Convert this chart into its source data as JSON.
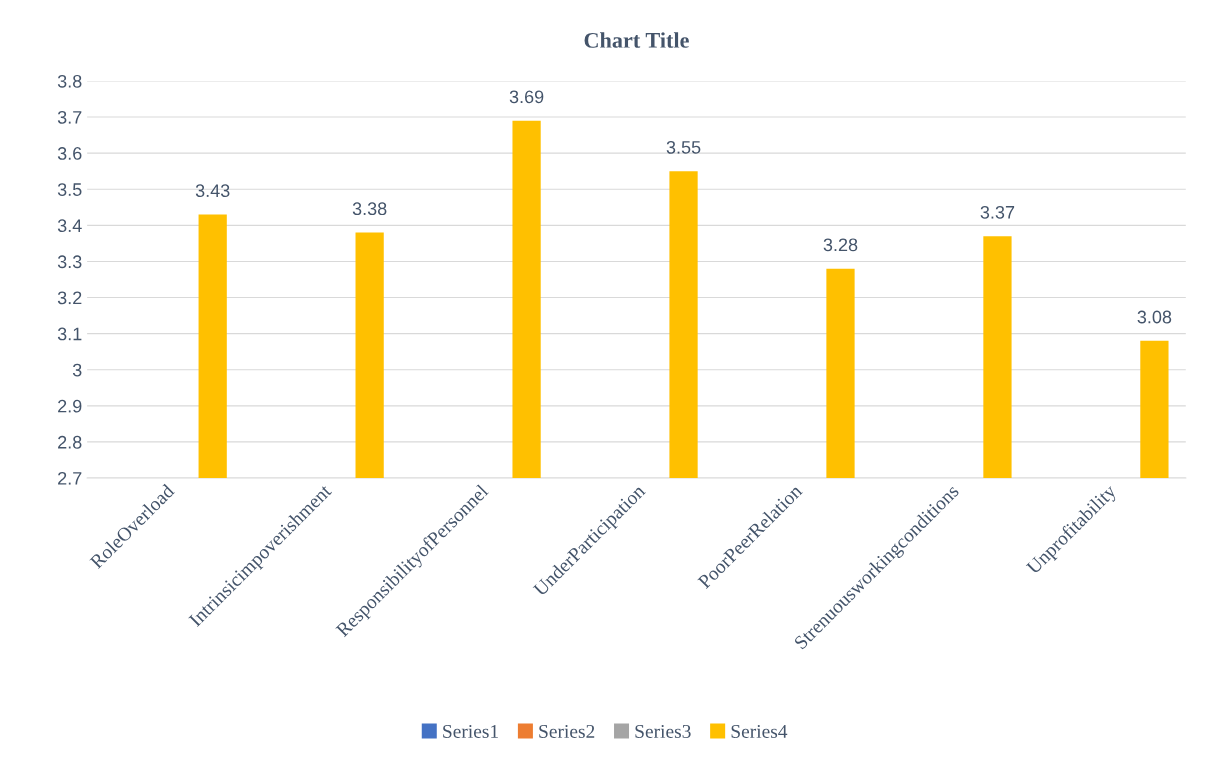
{
  "chart_data": {
    "type": "bar",
    "title": "Chart Title",
    "categories": [
      "RoleOverload",
      "Intrinsicimpoverishment",
      "ResponsibilityofPersonnel",
      "UnderParticipation",
      "PoorPeerRelation",
      "Strenuousworkingconditions",
      "Unprofitability"
    ],
    "series": [
      {
        "name": "Series1",
        "color": "#4472c4",
        "values": [
          null,
          null,
          null,
          null,
          null,
          null,
          null
        ]
      },
      {
        "name": "Series2",
        "color": "#ed7d31",
        "values": [
          null,
          null,
          null,
          null,
          null,
          null,
          null
        ]
      },
      {
        "name": "Series3",
        "color": "#a5a5a5",
        "values": [
          null,
          null,
          null,
          null,
          null,
          null,
          null
        ]
      },
      {
        "name": "Series4",
        "color": "#ffc000",
        "values": [
          3.43,
          3.38,
          3.69,
          3.55,
          3.28,
          3.37,
          3.08
        ]
      }
    ],
    "ylim": [
      2.7,
      3.8
    ],
    "yticks": [
      2.7,
      2.8,
      2.9,
      3,
      3.1,
      3.2,
      3.3,
      3.4,
      3.5,
      3.6,
      3.7,
      3.8
    ],
    "grid": "y",
    "legend": "bottom",
    "data_labels": true
  }
}
